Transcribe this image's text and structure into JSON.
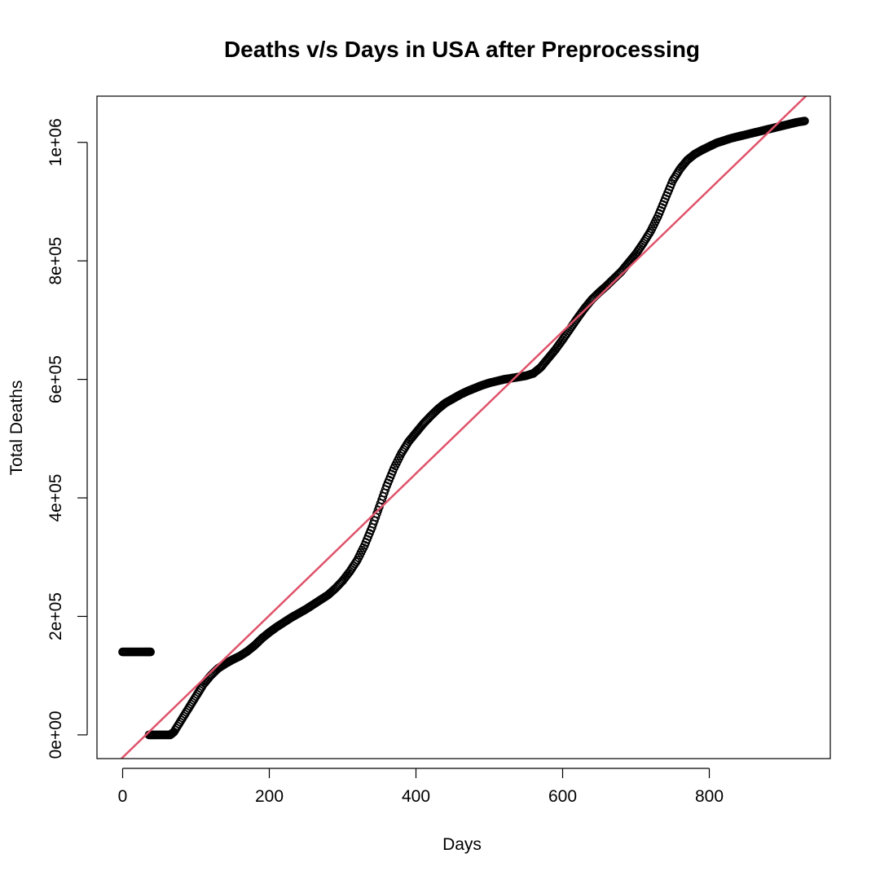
{
  "chart_data": {
    "type": "scatter",
    "title": "Deaths v/s Days in USA after Preprocessing",
    "xlabel": "Days",
    "ylabel": "Total Deaths",
    "xlim": [
      -35,
      965
    ],
    "ylim": [
      -40000,
      1078000
    ],
    "x_ticks": [
      0,
      200,
      400,
      600,
      800
    ],
    "x_tick_labels": [
      "0",
      "200",
      "400",
      "600",
      "800"
    ],
    "y_ticks": [
      0,
      200000,
      400000,
      600000,
      800000,
      1000000
    ],
    "y_tick_labels": [
      "0e+00",
      "2e+05",
      "4e+05",
      "6e+05",
      "8e+05",
      "1e+06"
    ],
    "point_style": "open-circle",
    "point_color": "#000000",
    "grid": false,
    "legend": "none",
    "series": [
      {
        "x": [
          0,
          10,
          20,
          30,
          38,
          36,
          45,
          55,
          65,
          70,
          80,
          90,
          100,
          110,
          120,
          130,
          140,
          150,
          160,
          170,
          180,
          190,
          200,
          210,
          220,
          230,
          240,
          250,
          260,
          270,
          280,
          290,
          300,
          310,
          320,
          330,
          340,
          350,
          360,
          370,
          380,
          390,
          400,
          410,
          420,
          430,
          440,
          450,
          460,
          470,
          480,
          490,
          500,
          510,
          520,
          530,
          540,
          550,
          560,
          570,
          580,
          590,
          600,
          610,
          620,
          630,
          640,
          650,
          660,
          670,
          680,
          690,
          700,
          710,
          720,
          730,
          740,
          750,
          760,
          770,
          780,
          790,
          800,
          810,
          820,
          830,
          840,
          850,
          860,
          870,
          880,
          890,
          900,
          910,
          920,
          930
        ],
        "y": [
          140000,
          140000,
          140000,
          140000,
          140000,
          0,
          0,
          0,
          0,
          5000,
          25000,
          45000,
          65000,
          85000,
          100000,
          112000,
          120000,
          127000,
          133000,
          141000,
          151000,
          163000,
          173000,
          182000,
          190000,
          198000,
          205000,
          212000,
          220000,
          228000,
          236000,
          247000,
          260000,
          276000,
          295000,
          320000,
          350000,
          385000,
          420000,
          450000,
          475000,
          495000,
          510000,
          525000,
          538000,
          550000,
          560000,
          567000,
          574000,
          580000,
          585000,
          590000,
          594000,
          597000,
          600000,
          602000,
          604000,
          606000,
          610000,
          620000,
          635000,
          650000,
          667000,
          685000,
          703000,
          720000,
          735000,
          747000,
          758000,
          770000,
          782000,
          797000,
          812000,
          830000,
          850000,
          875000,
          905000,
          935000,
          955000,
          970000,
          980000,
          987000,
          993000,
          999000,
          1003000,
          1007000,
          1010000,
          1013000,
          1016000,
          1019000,
          1022000,
          1025000,
          1028000,
          1031000,
          1034000,
          1036000
        ]
      }
    ],
    "fit_line": {
      "color": "#DF536B",
      "x": [
        -35,
        965
      ],
      "y": [
        -80000,
        1118000
      ]
    }
  }
}
